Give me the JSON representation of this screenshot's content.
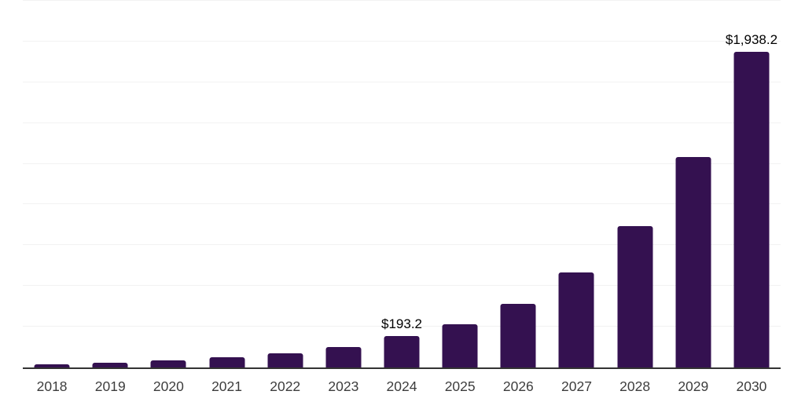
{
  "chart_data": {
    "type": "bar",
    "categories": [
      "2018",
      "2019",
      "2020",
      "2021",
      "2022",
      "2023",
      "2024",
      "2025",
      "2026",
      "2027",
      "2028",
      "2029",
      "2030"
    ],
    "values": [
      20,
      30,
      44,
      63,
      87,
      126,
      193.2,
      265,
      392,
      583,
      868,
      1290,
      1938.2
    ],
    "value_labels": {
      "2024": "$193.2",
      "2030": "$1,938.2"
    },
    "ylim": [
      0,
      2250
    ],
    "gridline_step": 250,
    "grid": true,
    "legend": false,
    "colors": {
      "bar": "#341150",
      "gridline": "#f2f2f2",
      "axis_line": "#333333",
      "tick_label": "#3d3d3d",
      "value_label": "#000000",
      "background": "#ffffff"
    }
  }
}
